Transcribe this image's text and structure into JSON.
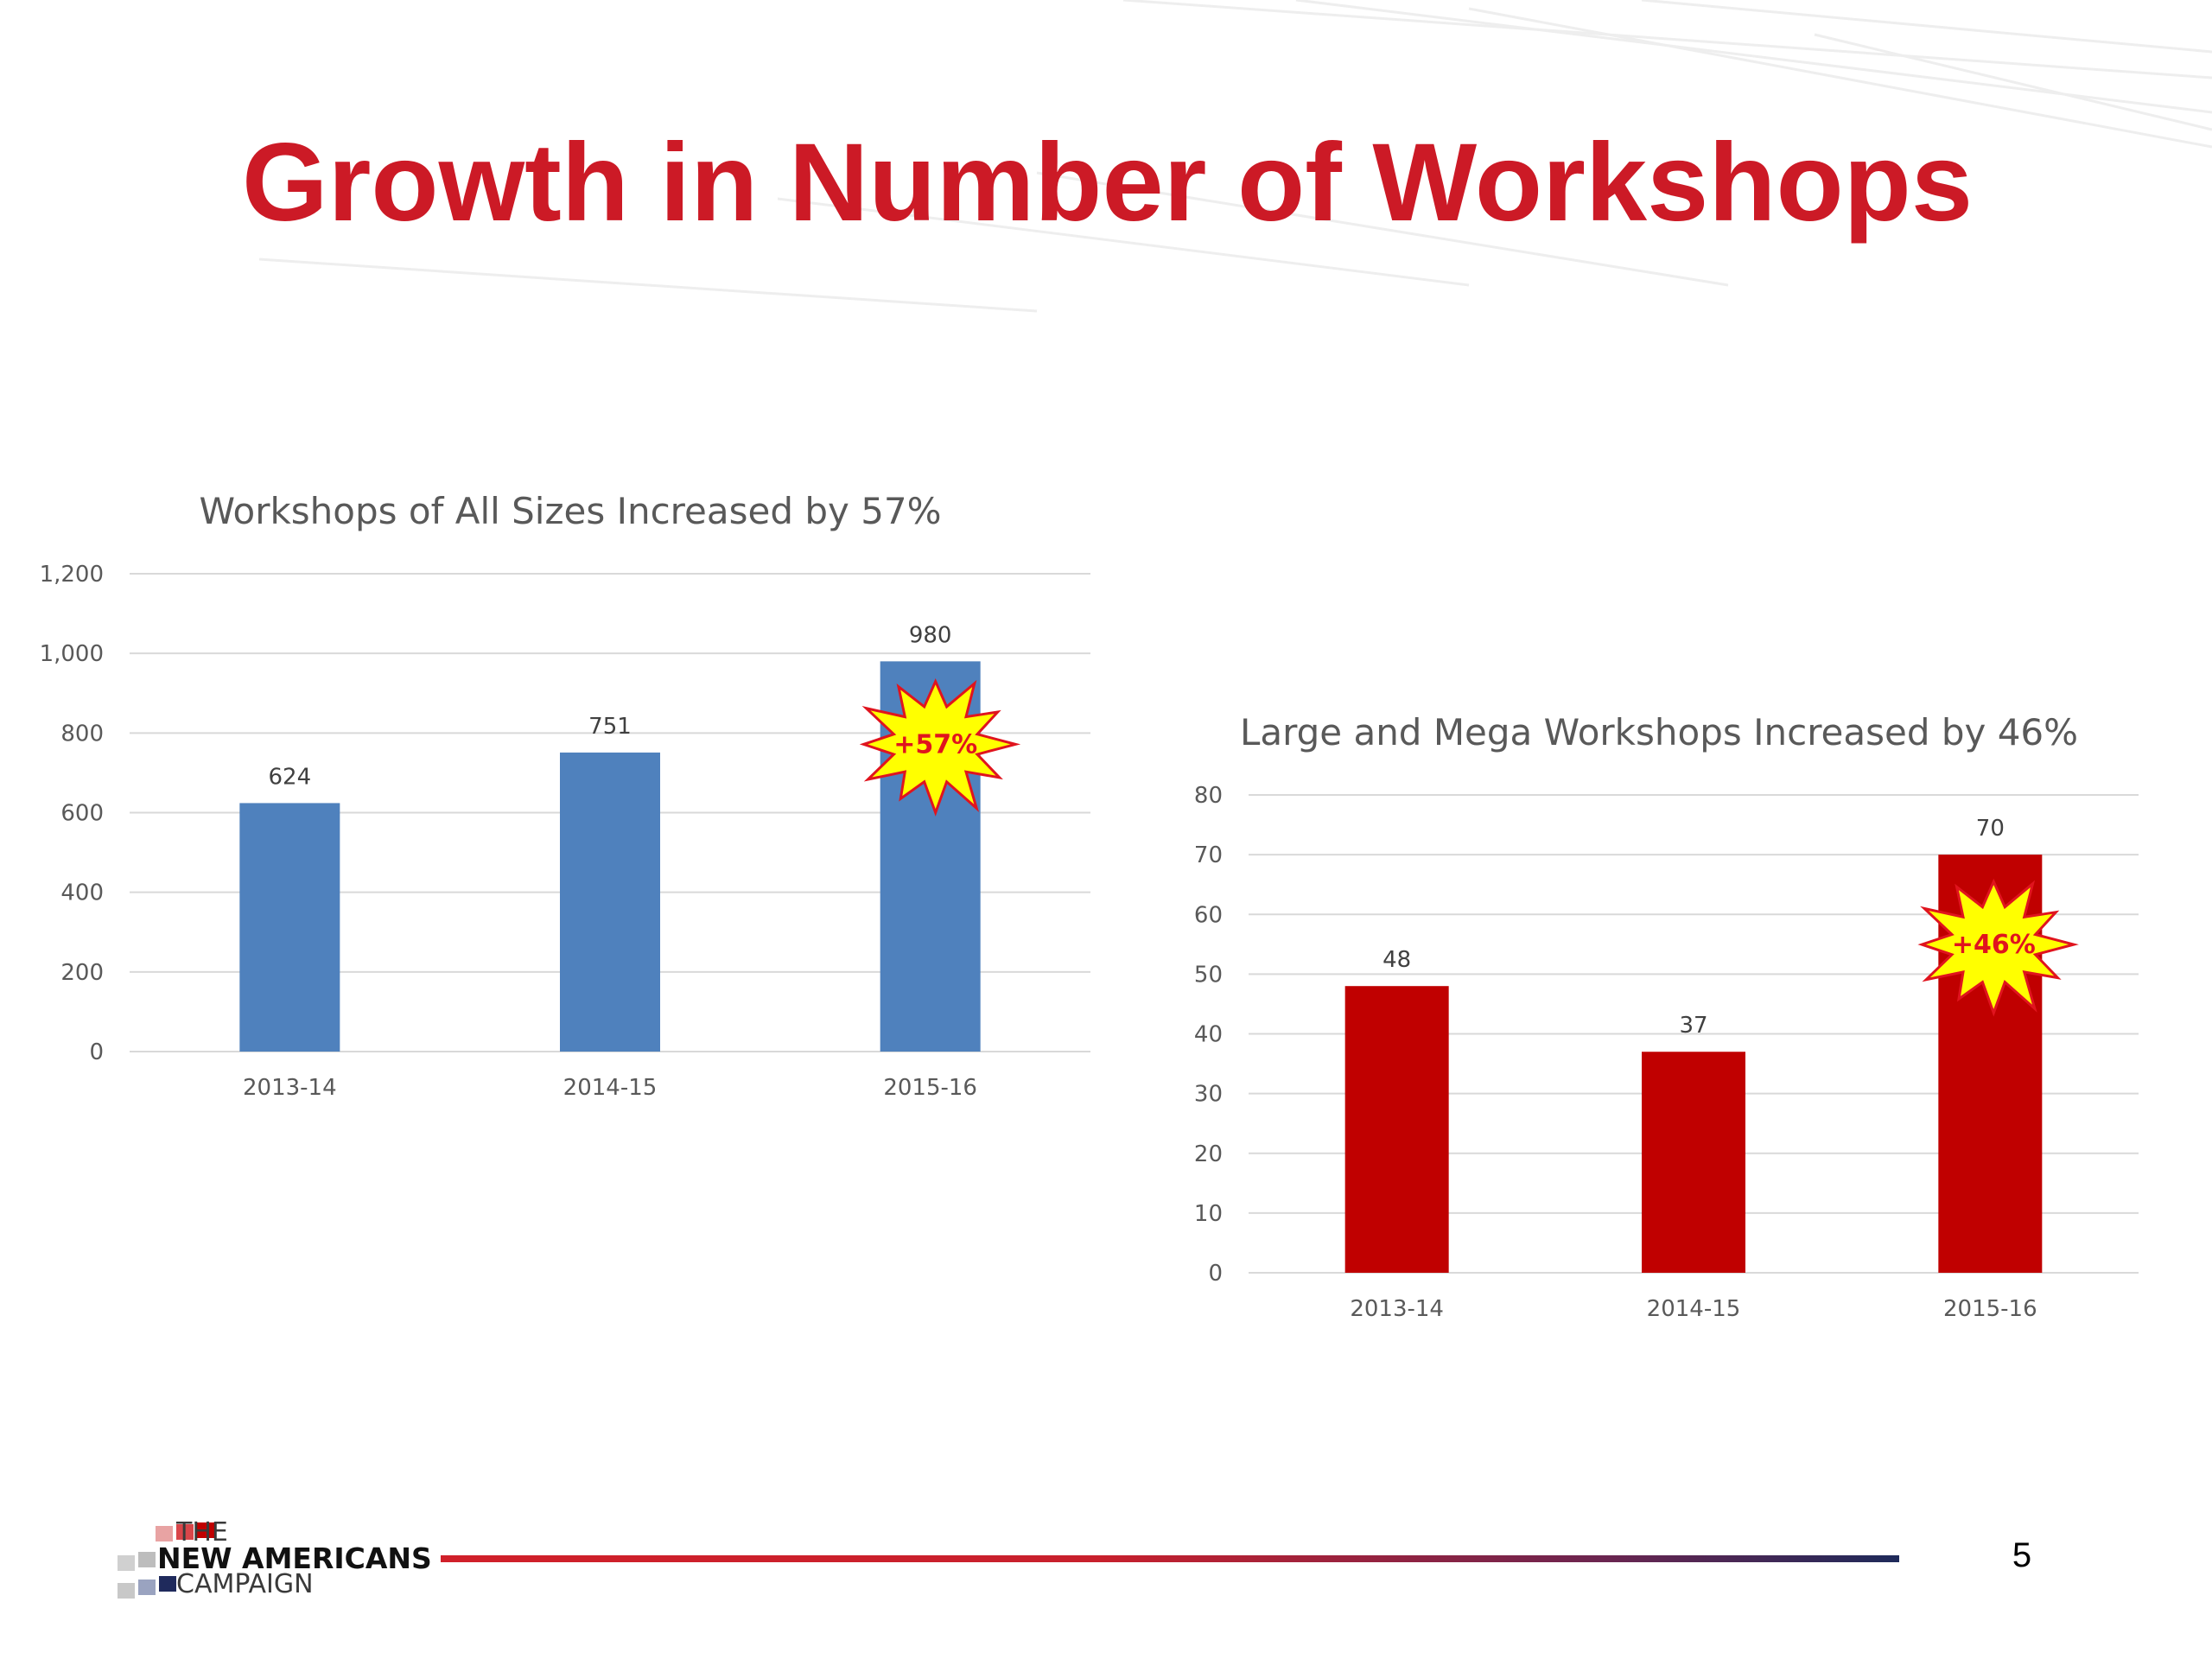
{
  "slide": {
    "title": "Growth in Number of Workshops",
    "page_number": "5",
    "logo": {
      "line1": "THE",
      "line2": "NEW AMERICANS",
      "line3": "CAMPAIGN"
    }
  },
  "chart_data": [
    {
      "type": "bar",
      "title": "Workshops of All Sizes Increased by 57%",
      "categories": [
        "2013-14",
        "2014-15",
        "2015-16"
      ],
      "values": [
        624,
        751,
        980
      ],
      "data_labels": [
        "624",
        "751",
        "980"
      ],
      "ylim": [
        0,
        1200
      ],
      "yticks": [
        0,
        200,
        400,
        600,
        800,
        1000,
        1200
      ],
      "ytick_labels": [
        "0",
        "200",
        "400",
        "600",
        "800",
        "1,000",
        "1,200"
      ],
      "grid": true,
      "bar_color": "#4f81bd",
      "callout": {
        "text": "+57%",
        "category": "2015-16"
      }
    },
    {
      "type": "bar",
      "title": "Large and Mega Workshops Increased by 46%",
      "categories": [
        "2013-14",
        "2014-15",
        "2015-16"
      ],
      "values": [
        48,
        37,
        70
      ],
      "data_labels": [
        "48",
        "37",
        "70"
      ],
      "ylim": [
        0,
        80
      ],
      "yticks": [
        0,
        10,
        20,
        30,
        40,
        50,
        60,
        70,
        80
      ],
      "ytick_labels": [
        "0",
        "10",
        "20",
        "30",
        "40",
        "50",
        "60",
        "70",
        "80"
      ],
      "grid": true,
      "bar_color": "#c00000",
      "callout": {
        "text": "+46%",
        "category": "2015-16"
      }
    }
  ],
  "colors": {
    "title": "#cc1a26",
    "burst_fill": "#ffff00",
    "burst_stroke": "#e0141e",
    "burst_text": "#e0141e",
    "grid": "#d9d9d9"
  }
}
